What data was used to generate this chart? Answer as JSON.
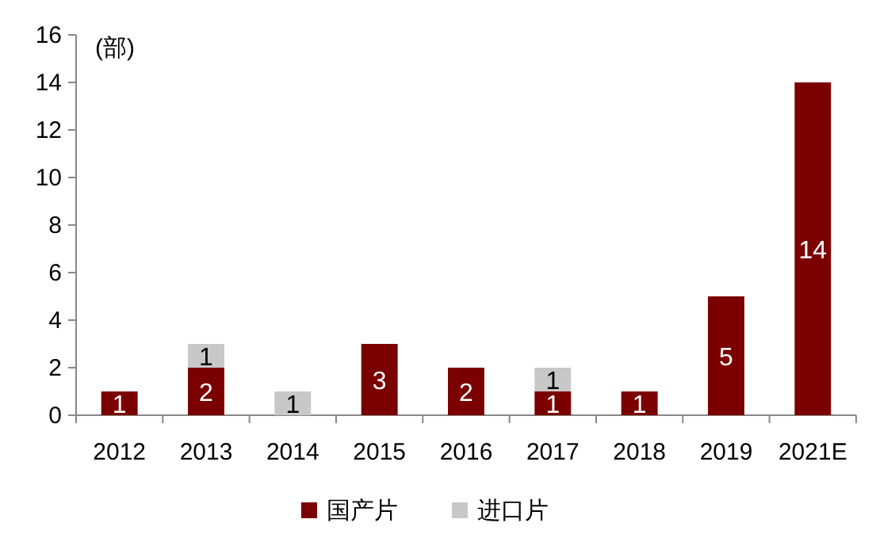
{
  "chart_data": {
    "type": "bar",
    "stacked": true,
    "ylabel": "(部)",
    "categories": [
      "2012",
      "2013",
      "2014",
      "2015",
      "2016",
      "2017",
      "2018",
      "2019",
      "2021E"
    ],
    "series": [
      {
        "name": "国产片",
        "color": "#7b0000",
        "values": [
          1,
          2,
          0,
          3,
          2,
          1,
          1,
          5,
          14
        ],
        "value_labels": [
          "1",
          "2",
          null,
          "3",
          "2",
          "1",
          "1",
          "5",
          "14"
        ]
      },
      {
        "name": "进口片",
        "color": "#c8c8c8",
        "values": [
          0,
          1,
          1,
          0,
          0,
          1,
          0,
          0,
          0
        ],
        "value_labels": [
          null,
          "1",
          "1",
          null,
          null,
          "1",
          null,
          null,
          null
        ]
      }
    ],
    "ylim": [
      0,
      16
    ],
    "yticks": [
      0,
      2,
      4,
      6,
      8,
      10,
      12,
      14,
      16
    ],
    "legend": "bottom"
  }
}
